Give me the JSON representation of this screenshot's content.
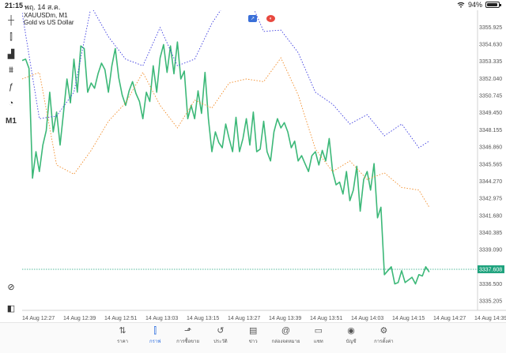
{
  "status_bar": {
    "time": "21:15",
    "date": "พฤ. 14 ส.ค.",
    "wifi": "wifi-icon",
    "battery_percent": "94%",
    "battery_level": 0.94
  },
  "chart": {
    "symbol": "XAUUSDm, M1",
    "description": "Gold vs US Dollar",
    "current_price": "3337.608",
    "colors": {
      "line": "#3cb878",
      "ask_line": "#3c3ce0",
      "bid_line": "#f28c28",
      "current_price": "#1fa37e",
      "grid": "#e6e6e6"
    }
  },
  "chart_data": {
    "type": "line",
    "x_labels": [
      "14 Aug 12:27",
      "14 Aug 12:39",
      "14 Aug 12:51",
      "14 Aug 13:03",
      "14 Aug 13:15",
      "14 Aug 13:27",
      "14 Aug 13:39",
      "14 Aug 13:51",
      "14 Aug 14:03",
      "14 Aug 14:15",
      "14 Aug 14:27",
      "14 Aug 14:39"
    ],
    "y_labels": [
      "3355.925",
      "3354.630",
      "3353.335",
      "3352.040",
      "3350.745",
      "3349.450",
      "3348.155",
      "3346.860",
      "3345.565",
      "3344.270",
      "3342.975",
      "3341.680",
      "3340.385",
      "3339.090",
      "3337.608",
      "3336.500",
      "3335.205"
    ],
    "ylim": [
      3334.5,
      3357.2
    ],
    "time_range_minutes": [
      0,
      132
    ],
    "current_price": 3337.608,
    "series": [
      {
        "style": "solid",
        "x": [
          0,
          1,
          2,
          3,
          4,
          5,
          6,
          7,
          8,
          9,
          10,
          11,
          12,
          13,
          14,
          15,
          16,
          17,
          18,
          19,
          20,
          21,
          22,
          23,
          24,
          25,
          26,
          27,
          28,
          29,
          30,
          31,
          32,
          33,
          34,
          35,
          36,
          37,
          38,
          39,
          40,
          41,
          42,
          43,
          44,
          45,
          46,
          47,
          48,
          49,
          50,
          51,
          52,
          53,
          54,
          55,
          56,
          57,
          58,
          59,
          60,
          61,
          62,
          63,
          64,
          65,
          66,
          67,
          68,
          69,
          70,
          71,
          72,
          73,
          74,
          75,
          76,
          77,
          78,
          79,
          80,
          81,
          82,
          83,
          84,
          85,
          86,
          87,
          88,
          89,
          90,
          91,
          92,
          93,
          94,
          95,
          96,
          97,
          98,
          99,
          100,
          101,
          102,
          103,
          104,
          105,
          106,
          107,
          108,
          109,
          110,
          111,
          112,
          113,
          114,
          115,
          116,
          117,
          118
        ],
        "values": [
          3353.4,
          3353.5,
          3352.8,
          3344.5,
          3346.5,
          3345.0,
          3347.0,
          3348.1,
          3351.0,
          3348.0,
          3349.5,
          3347.0,
          3349.5,
          3352.0,
          3350.2,
          3353.5,
          3351.0,
          3354.5,
          3354.3,
          3351.0,
          3351.7,
          3351.3,
          3352.4,
          3353.2,
          3352.7,
          3351.0,
          3353.0,
          3354.3,
          3352.1,
          3350.8,
          3350.0,
          3351.1,
          3351.8,
          3350.9,
          3350.3,
          3349.0,
          3351.0,
          3350.3,
          3353.0,
          3351.0,
          3353.6,
          3354.6,
          3352.5,
          3354.5,
          3352.4,
          3354.8,
          3352.0,
          3352.6,
          3349.0,
          3350.0,
          3349.0,
          3351.1,
          3349.4,
          3352.5,
          3349.0,
          3346.5,
          3348.0,
          3347.2,
          3346.8,
          3348.6,
          3347.5,
          3346.5,
          3349.1,
          3346.5,
          3347.5,
          3349.0,
          3347.0,
          3349.5,
          3346.5,
          3346.7,
          3348.8,
          3346.5,
          3345.8,
          3348.0,
          3349.0,
          3348.3,
          3348.7,
          3348.0,
          3346.8,
          3347.3,
          3345.8,
          3346.2,
          3345.6,
          3345.0,
          3346.2,
          3346.5,
          3345.5,
          3346.6,
          3345.8,
          3347.5,
          3345.0,
          3344.0,
          3344.2,
          3343.3,
          3345.0,
          3342.8,
          3343.6,
          3345.4,
          3342.0,
          3344.4,
          3345.0,
          3343.6,
          3345.6,
          3341.5,
          3342.3,
          3337.2,
          3337.5,
          3337.8,
          3336.5,
          3336.6,
          3337.5,
          3336.6,
          3336.8,
          3337.0,
          3336.5,
          3337.2,
          3337.1,
          3337.8,
          3337.4
        ]
      },
      {
        "style": "dotted-ask",
        "x": [
          0,
          5,
          10,
          15,
          20,
          25,
          30,
          35,
          40,
          45,
          50,
          55,
          60,
          65,
          70,
          75,
          80,
          85,
          90,
          95,
          100,
          105,
          110,
          115,
          118
        ],
        "values": [
          3357.0,
          3349.0,
          3349.2,
          3351.0,
          3357.5,
          3355.2,
          3353.5,
          3353.0,
          3355.9,
          3353.0,
          3353.5,
          3356.2,
          3358.2,
          3358.6,
          3355.6,
          3355.7,
          3354.0,
          3351.0,
          3350.1,
          3348.6,
          3349.3,
          3347.7,
          3348.6,
          3346.8,
          3347.3
        ]
      },
      {
        "style": "dotted-bid",
        "x": [
          0,
          5,
          10,
          15,
          20,
          25,
          30,
          35,
          40,
          45,
          50,
          55,
          60,
          65,
          70,
          75,
          80,
          85,
          90,
          95,
          100,
          105,
          110,
          115,
          118
        ],
        "values": [
          3352.0,
          3352.5,
          3345.5,
          3344.8,
          3346.6,
          3348.8,
          3350.2,
          3352.5,
          3350.0,
          3348.3,
          3350.4,
          3349.8,
          3351.7,
          3352.0,
          3351.8,
          3353.6,
          3350.8,
          3346.7,
          3345.0,
          3345.8,
          3344.4,
          3344.9,
          3343.8,
          3343.6,
          3342.3
        ]
      }
    ]
  },
  "toolbar": {
    "items": [
      {
        "icon": "crosshair-icon",
        "glyph": "┼"
      },
      {
        "icon": "indicators-icon",
        "glyph": "⫿"
      },
      {
        "icon": "bar-chart-icon",
        "glyph": "▟"
      },
      {
        "icon": "objects-icon",
        "glyph": "⩩"
      },
      {
        "icon": "function-icon",
        "glyph": "ƒ"
      },
      {
        "icon": "shapes-icon",
        "glyph": "◔"
      },
      {
        "label": "M1"
      },
      {
        "icon": "zoom-icon",
        "glyph": "⊘"
      },
      {
        "icon": "one-click-trading-icon",
        "glyph": "◧"
      }
    ]
  },
  "bottom_nav": {
    "items": [
      {
        "icon": "quotes-icon",
        "glyph": "⇅",
        "label": "ราคา"
      },
      {
        "icon": "chart-icon",
        "glyph": "⫿",
        "label": "กราฟ",
        "active": true
      },
      {
        "icon": "trade-icon",
        "glyph": "⬏",
        "label": "การซื้อขาย"
      },
      {
        "icon": "history-icon",
        "glyph": "↺",
        "label": "ประวัติ"
      },
      {
        "icon": "news-icon",
        "glyph": "▤",
        "label": "ข่าว"
      },
      {
        "icon": "mailbox-icon",
        "glyph": "@",
        "label": "กล่องจดหมาย"
      },
      {
        "icon": "chat-icon",
        "glyph": "▭",
        "label": "แชท"
      },
      {
        "icon": "account-icon",
        "glyph": "◉",
        "label": "บัญชี"
      },
      {
        "icon": "settings-icon",
        "glyph": "⚙",
        "label": "การตั้งค่า"
      }
    ]
  }
}
